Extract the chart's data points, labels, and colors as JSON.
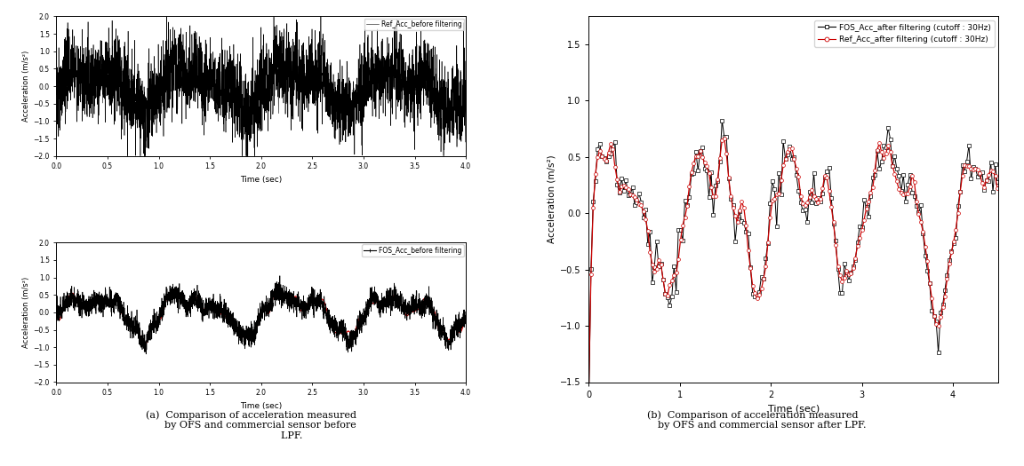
{
  "fig_width": 11.52,
  "fig_height": 5.25,
  "bg_color": "#ffffff",
  "top_left": {
    "legend_label": "Ref_Acc_before filtering",
    "line_color": "#000000",
    "xlim": [
      0.0,
      4.0
    ],
    "ylim": [
      -2.0,
      2.0
    ],
    "yticks": [
      -2.0,
      -1.5,
      -1.0,
      -0.5,
      0.0,
      0.5,
      1.0,
      1.5,
      2.0
    ],
    "xticks": [
      0.0,
      0.5,
      1.0,
      1.5,
      2.0,
      2.5,
      3.0,
      3.5,
      4.0
    ],
    "xlabel": "Time (sec)",
    "ylabel": "Acceleration (m/s²)"
  },
  "bottom_left": {
    "legend_label": "FOS_Acc_before filtering",
    "line_color_black": "#000000",
    "line_color_red": "#cc0000",
    "xlim": [
      0.0,
      4.0
    ],
    "ylim": [
      -2.0,
      2.0
    ],
    "yticks": [
      -2.0,
      -1.5,
      -1.0,
      -0.5,
      0.0,
      0.5,
      1.0,
      1.5,
      2.0
    ],
    "xticks": [
      0.0,
      0.5,
      1.0,
      1.5,
      2.0,
      2.5,
      3.0,
      3.5,
      4.0
    ],
    "xlabel": "Time (sec)",
    "ylabel": "Acceleration (m/s²)"
  },
  "right": {
    "legend_label_black": "FOS_Acc_after filtering (cutoff : 30Hz)",
    "legend_label_red": "Ref_Acc_after filtering (cutoff : 30Hz)",
    "line_color_black": "#000000",
    "line_color_red": "#cc0000",
    "xlim": [
      0.0,
      4.5
    ],
    "ylim": [
      -1.5,
      1.75
    ],
    "yticks": [
      -1.5,
      -1.0,
      -0.5,
      0.0,
      0.5,
      1.0,
      1.5
    ],
    "xticks": [
      0,
      1,
      2,
      3,
      4
    ],
    "xlabel": "Time (sec)",
    "ylabel": "Acceleration (m/s²)"
  },
  "caption_left": "(a)  Comparison of acceleration measured\n      by OFS and commercial sensor before\n                          LPF.",
  "caption_right": "(b)  Comparison of acceleration measured\n      by OFS and commercial sensor after LPF."
}
